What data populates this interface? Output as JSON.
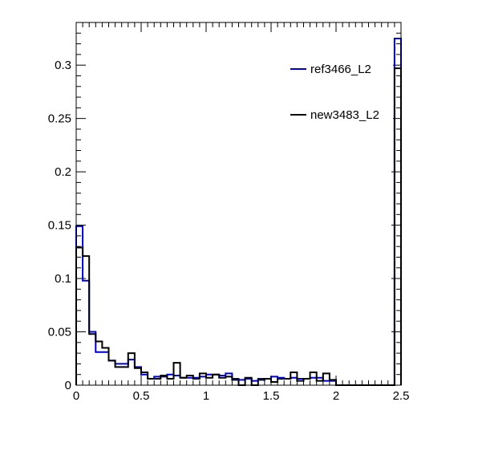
{
  "chart_data": {
    "type": "histogram",
    "xlim": [
      0,
      2.5
    ],
    "ylim": [
      0,
      0.34
    ],
    "bin_width": 0.05,
    "x_ticks": [
      0,
      0.5,
      1,
      1.5,
      2,
      2.5
    ],
    "x_tick_labels": [
      "0",
      "0.5",
      "1",
      "1.5",
      "2",
      "2.5"
    ],
    "y_ticks": [
      0,
      0.05,
      0.1,
      0.15,
      0.2,
      0.25,
      0.3
    ],
    "y_tick_labels": [
      "0",
      "0.05",
      "0.1",
      "0.15",
      "0.2",
      "0.25",
      "0.3"
    ],
    "legend_position": "top-right",
    "series": [
      {
        "name": "ref3466_L2",
        "color": "#0000cc",
        "values": [
          0.149,
          0.098,
          0.05,
          0.031,
          0.031,
          0.023,
          0.02,
          0.02,
          0.024,
          0.017,
          0.01,
          0.006,
          0.008,
          0.008,
          0.01,
          0.009,
          0.007,
          0.007,
          0.007,
          0.008,
          0.01,
          0.01,
          0.009,
          0.011,
          0.006,
          0.005,
          0.006,
          0.004,
          0.006,
          0.006,
          0.008,
          0.007,
          0.006,
          0.007,
          0.006,
          0.006,
          0.007,
          0.007,
          0.004,
          0.004,
          0.0,
          0.0,
          0.0,
          0.0,
          0.0,
          0.0,
          0.0,
          0.0,
          0.0,
          0.325
        ]
      },
      {
        "name": "new3483_L2",
        "color": "#000000",
        "values": [
          0.129,
          0.121,
          0.048,
          0.041,
          0.035,
          0.023,
          0.017,
          0.017,
          0.03,
          0.016,
          0.012,
          0.006,
          0.006,
          0.009,
          0.006,
          0.021,
          0.007,
          0.009,
          0.006,
          0.011,
          0.007,
          0.01,
          0.007,
          0.008,
          0.005,
          0.0,
          0.007,
          0.0,
          0.005,
          0.006,
          0.003,
          0.006,
          0.006,
          0.012,
          0.004,
          0.006,
          0.012,
          0.004,
          0.011,
          0.005,
          0.0,
          0.0,
          0.0,
          0.0,
          0.0,
          0.0,
          0.0,
          0.0,
          0.0,
          0.297
        ]
      }
    ]
  }
}
